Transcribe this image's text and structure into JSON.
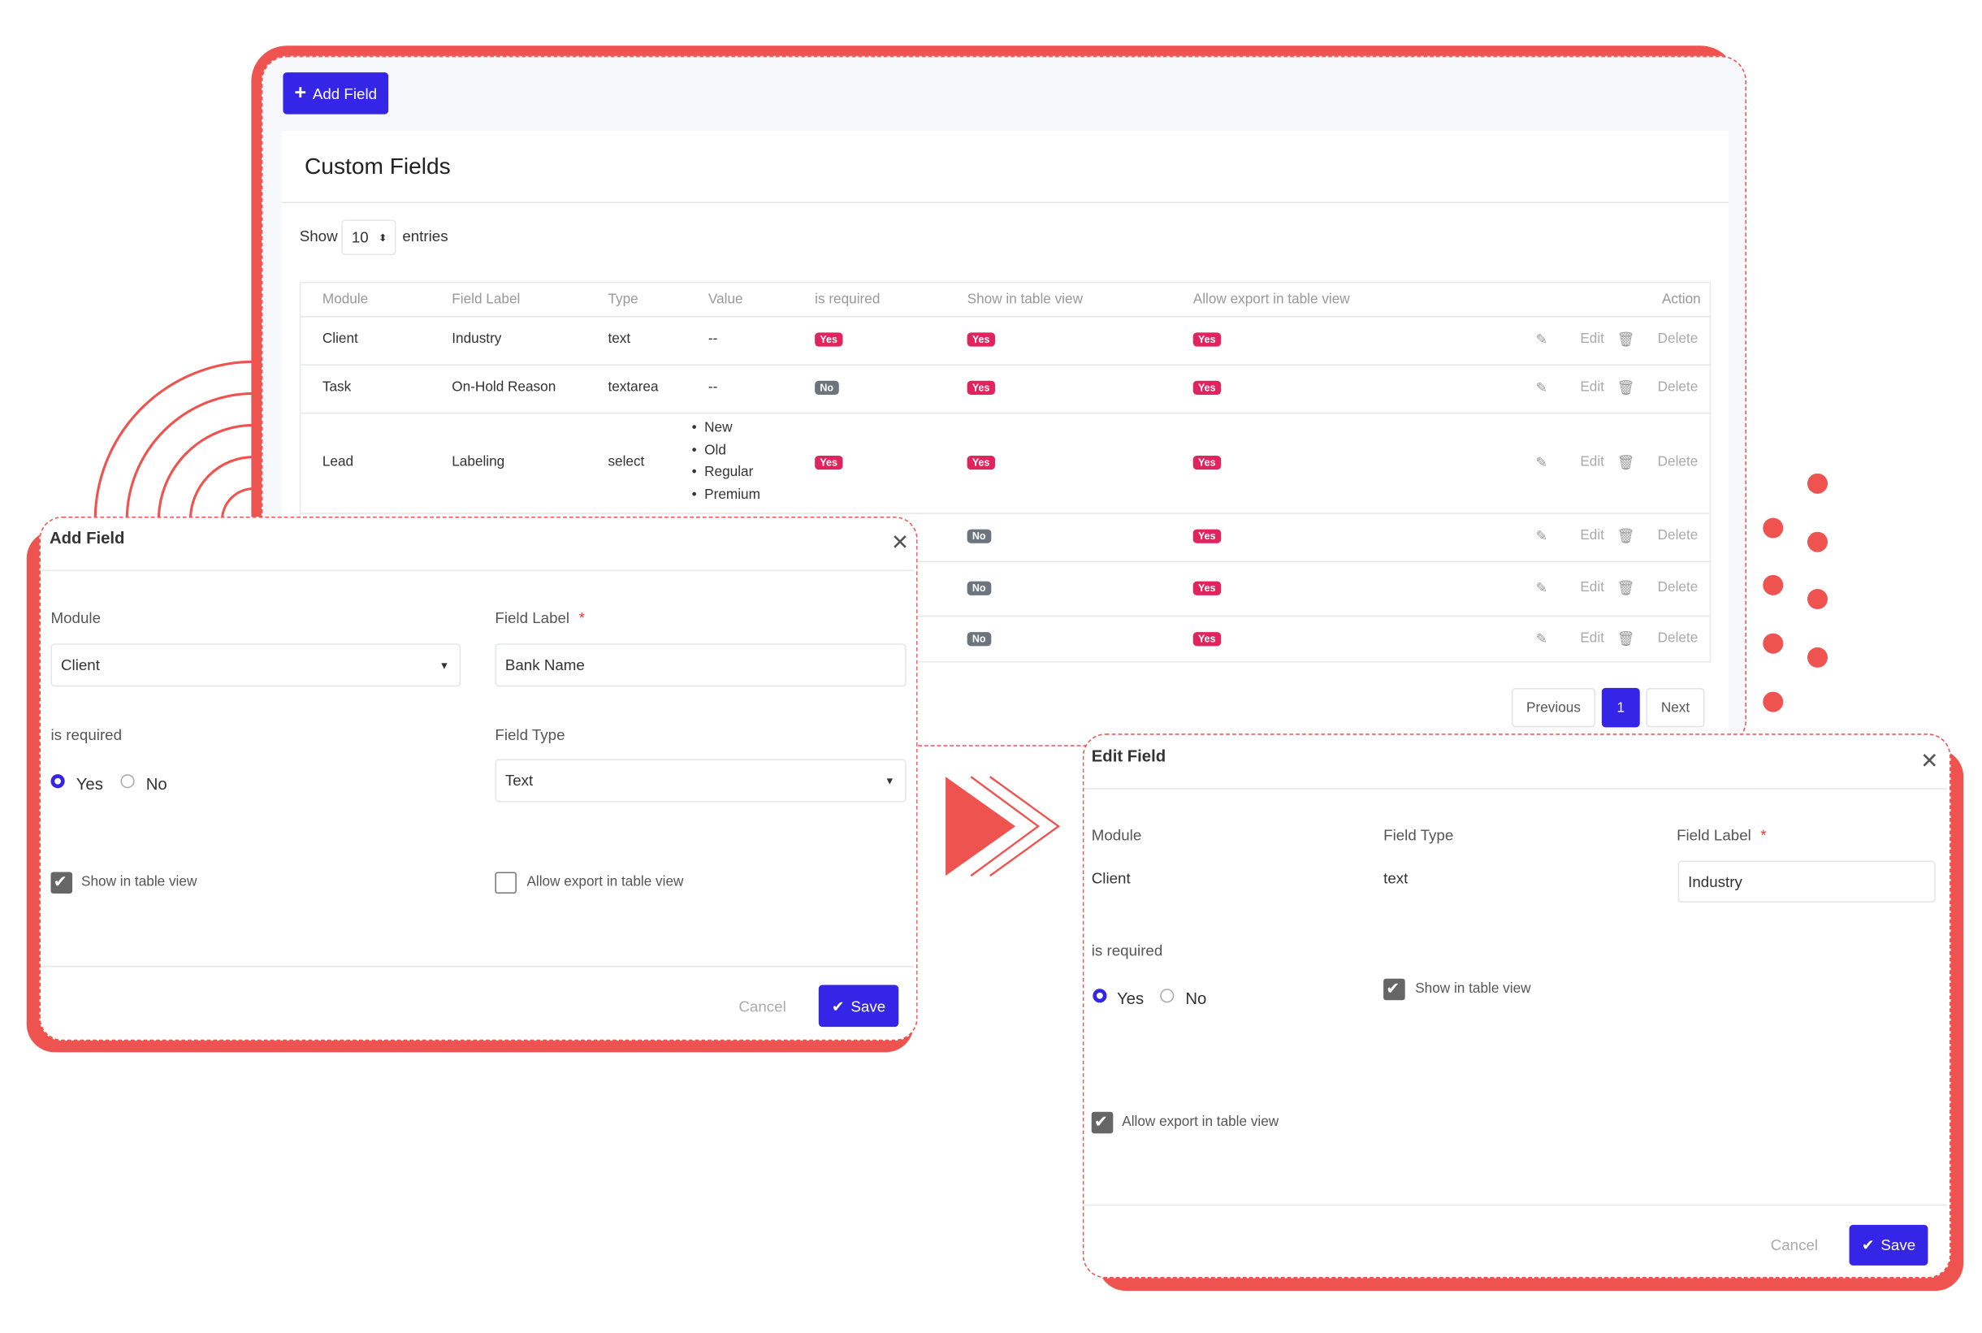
{
  "header": {
    "add_button": "Add Field"
  },
  "card": {
    "title": "Custom Fields",
    "show": "Show",
    "entries_value": "10",
    "entries": "entries",
    "table": {
      "columns": [
        "Module",
        "Field Label",
        "Type",
        "Value",
        "is required",
        "Show in table view",
        "Allow export in table view",
        "Action"
      ],
      "actions": [
        "Edit",
        "Delete"
      ],
      "rows": [
        {
          "module": "Client",
          "label": "Industry",
          "type": "text",
          "value": "--",
          "required": "Yes",
          "show": "Yes",
          "export": "Yes"
        },
        {
          "module": "Task",
          "label": "On-Hold Reason",
          "type": "textarea",
          "value": "--",
          "required": "No",
          "show": "Yes",
          "export": "Yes"
        },
        {
          "module": "Lead",
          "label": "Labeling",
          "type": "select",
          "value": [
            "New",
            "Old",
            "Regular",
            "Premium"
          ],
          "required": "Yes",
          "show": "Yes",
          "export": "Yes"
        },
        {
          "show": "No",
          "export": "Yes"
        },
        {
          "show": "No",
          "export": "Yes"
        },
        {
          "show": "No",
          "export": "Yes"
        }
      ]
    },
    "pagination": [
      "Previous",
      "1",
      "Next"
    ]
  },
  "add_modal": {
    "title": "Add Field",
    "module_label": "Module",
    "module_value": "Client",
    "field_label": "Field Label",
    "required_mark": "*",
    "field_value": "Bank Name",
    "is_required": "is required",
    "yes": "Yes",
    "no": "No",
    "field_type": "Field Type",
    "field_type_value": "Text",
    "show_in_table": "Show in table view",
    "allow_export": "Allow export in table view",
    "cancel": "Cancel",
    "save": "Save"
  },
  "edit_modal": {
    "title": "Edit Field",
    "module_label": "Module",
    "module_value": "Client",
    "field_type": "Field Type",
    "field_type_value": "text",
    "field_label": "Field Label",
    "required_mark": "*",
    "field_value": "Industry",
    "is_required": "is required",
    "yes": "Yes",
    "no": "No",
    "show_in_table": "Show in table view",
    "allow_export": "Allow export in table view",
    "cancel": "Cancel",
    "save": "Save"
  }
}
